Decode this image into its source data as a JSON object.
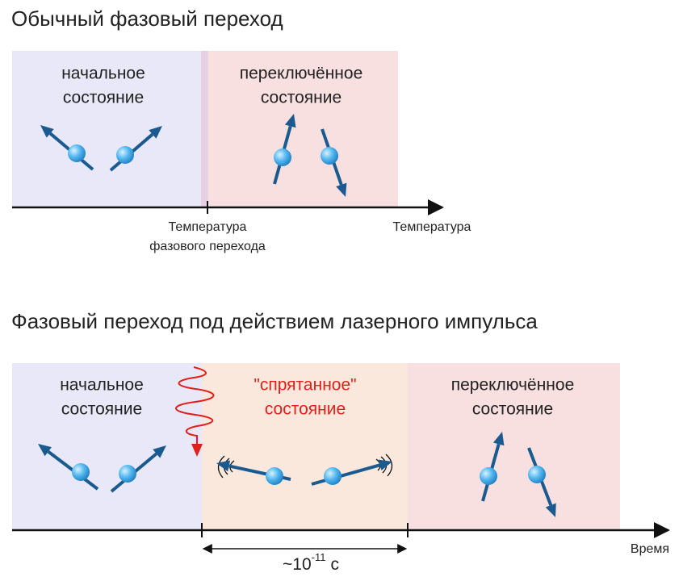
{
  "top": {
    "title": "Обычный фазовый переход",
    "initial_state": [
      "начальное",
      "состояние"
    ],
    "switched_state": [
      "переключённое",
      "состояние"
    ],
    "transition_label": [
      "Температура",
      "фазового перехода"
    ],
    "axis_label": "Температура"
  },
  "bottom": {
    "title": "Фазовый переход под действием лазерного импульса",
    "initial_state": [
      "начальное",
      "состояние"
    ],
    "hidden_state": [
      "\"спрятанное\"",
      "состояние"
    ],
    "switched_state": [
      "переключённое",
      "состояние"
    ],
    "duration": {
      "base": "~10",
      "exponent": "-11",
      "unit": "с"
    },
    "axis_label": "Время"
  }
}
